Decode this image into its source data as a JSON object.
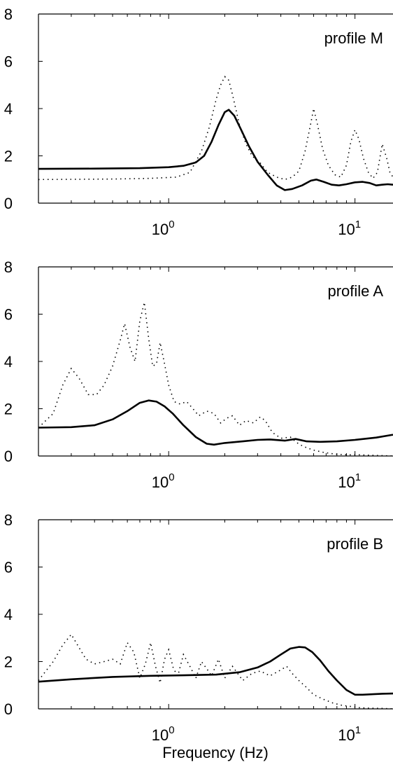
{
  "chart_data": [
    {
      "type": "line",
      "annotation": "profile M",
      "xscale": "log",
      "xlim": [
        0.2,
        16
      ],
      "ylim": [
        0,
        8
      ],
      "yticks": [
        0,
        2,
        4,
        6,
        8
      ],
      "xticks": [
        {
          "value": 1,
          "base": "10",
          "exp": "0"
        },
        {
          "value": 10,
          "base": "10",
          "exp": "1"
        }
      ],
      "series": [
        {
          "style": "solid",
          "x": [
            0.2,
            0.4,
            0.7,
            1.0,
            1.2,
            1.4,
            1.55,
            1.7,
            1.85,
            2.0,
            2.1,
            2.25,
            2.45,
            2.7,
            3.0,
            3.4,
            3.8,
            4.2,
            4.6,
            5.2,
            5.8,
            6.2,
            6.8,
            7.5,
            8.2,
            9.0,
            10.0,
            11.0,
            12.0,
            13.0,
            14.0,
            15.0,
            16.0
          ],
          "y": [
            1.45,
            1.46,
            1.48,
            1.52,
            1.58,
            1.72,
            2.0,
            2.6,
            3.3,
            3.85,
            3.95,
            3.7,
            3.1,
            2.4,
            1.75,
            1.2,
            0.75,
            0.55,
            0.6,
            0.75,
            0.95,
            1.0,
            0.9,
            0.78,
            0.75,
            0.8,
            0.88,
            0.9,
            0.85,
            0.75,
            0.78,
            0.8,
            0.78
          ]
        },
        {
          "style": "dotted",
          "x": [
            0.2,
            0.5,
            0.8,
            1.1,
            1.3,
            1.5,
            1.65,
            1.8,
            1.9,
            2.0,
            2.1,
            2.2,
            2.4,
            2.6,
            2.8,
            3.1,
            3.4,
            3.8,
            4.2,
            4.6,
            5.0,
            5.4,
            5.8,
            6.0,
            6.3,
            6.7,
            7.2,
            7.8,
            8.4,
            9.0,
            9.5,
            10.0,
            10.5,
            11.1,
            11.8,
            12.5,
            13.2,
            14.0,
            14.8,
            15.4,
            16.0
          ],
          "y": [
            1.0,
            1.02,
            1.05,
            1.1,
            1.3,
            2.2,
            3.2,
            4.4,
            5.0,
            5.35,
            5.2,
            4.6,
            3.3,
            2.5,
            2.0,
            1.7,
            1.3,
            1.1,
            1.0,
            1.1,
            1.35,
            2.2,
            3.4,
            4.0,
            3.3,
            2.3,
            1.6,
            1.2,
            1.1,
            1.6,
            2.6,
            3.1,
            2.7,
            1.9,
            1.3,
            1.05,
            1.3,
            2.5,
            1.9,
            1.3,
            1.1
          ]
        }
      ]
    },
    {
      "type": "line",
      "annotation": "profile A",
      "xscale": "log",
      "xlim": [
        0.2,
        16
      ],
      "ylim": [
        0,
        8
      ],
      "yticks": [
        0,
        2,
        4,
        6,
        8
      ],
      "xticks": [
        {
          "value": 1,
          "base": "10",
          "exp": "0"
        },
        {
          "value": 10,
          "base": "10",
          "exp": "1"
        }
      ],
      "series": [
        {
          "style": "solid",
          "x": [
            0.2,
            0.3,
            0.4,
            0.5,
            0.6,
            0.7,
            0.78,
            0.86,
            0.95,
            1.05,
            1.2,
            1.4,
            1.6,
            1.75,
            2.0,
            2.5,
            3.0,
            3.5,
            4.2,
            4.8,
            5.5,
            6.5,
            8.0,
            10.0,
            13.0,
            16.0
          ],
          "y": [
            1.2,
            1.22,
            1.3,
            1.55,
            1.9,
            2.25,
            2.35,
            2.3,
            2.1,
            1.8,
            1.3,
            0.8,
            0.52,
            0.48,
            0.55,
            0.62,
            0.68,
            0.7,
            0.65,
            0.72,
            0.62,
            0.6,
            0.62,
            0.68,
            0.78,
            0.9
          ]
        },
        {
          "style": "dotted",
          "x": [
            0.2,
            0.24,
            0.27,
            0.3,
            0.33,
            0.37,
            0.41,
            0.45,
            0.5,
            0.55,
            0.58,
            0.62,
            0.66,
            0.7,
            0.74,
            0.78,
            0.82,
            0.86,
            0.9,
            0.95,
            1.0,
            1.07,
            1.15,
            1.25,
            1.35,
            1.45,
            1.6,
            1.75,
            1.9,
            2.05,
            2.2,
            2.4,
            2.6,
            2.85,
            3.1,
            3.3,
            3.6,
            4.0,
            4.5,
            5.0,
            5.5,
            6.0,
            6.8,
            7.8,
            9.0,
            10.5,
            12.5,
            16.0
          ],
          "y": [
            1.2,
            1.8,
            3.0,
            3.7,
            3.3,
            2.6,
            2.6,
            3.0,
            3.8,
            4.9,
            5.6,
            4.6,
            4.0,
            5.7,
            6.5,
            5.0,
            3.8,
            3.9,
            4.8,
            3.9,
            3.0,
            2.3,
            2.2,
            2.3,
            2.0,
            1.7,
            1.9,
            1.8,
            1.4,
            1.6,
            1.7,
            1.3,
            1.5,
            1.4,
            1.65,
            1.5,
            1.0,
            0.75,
            0.8,
            0.5,
            0.35,
            0.25,
            0.15,
            0.08,
            0.05,
            0.05,
            0.03,
            0.0
          ]
        }
      ]
    },
    {
      "type": "line",
      "annotation": "profile B",
      "xscale": "log",
      "xlim": [
        0.2,
        16
      ],
      "ylim": [
        0,
        8
      ],
      "yticks": [
        0,
        2,
        4,
        6,
        8
      ],
      "xticks": [
        {
          "value": 1,
          "base": "10",
          "exp": "0"
        },
        {
          "value": 10,
          "base": "10",
          "exp": "1"
        }
      ],
      "xlabel": "Frequency (Hz)",
      "series": [
        {
          "style": "solid",
          "x": [
            0.2,
            0.3,
            0.5,
            0.8,
            1.2,
            1.8,
            2.4,
            3.0,
            3.5,
            4.0,
            4.5,
            5.0,
            5.4,
            5.9,
            6.5,
            7.2,
            8.0,
            9.0,
            10.0,
            11.0,
            12.5,
            14.0,
            16.0
          ],
          "y": [
            1.15,
            1.25,
            1.35,
            1.4,
            1.42,
            1.45,
            1.55,
            1.75,
            2.0,
            2.3,
            2.55,
            2.62,
            2.6,
            2.4,
            2.05,
            1.6,
            1.2,
            0.8,
            0.6,
            0.6,
            0.62,
            0.64,
            0.65
          ]
        },
        {
          "style": "dotted",
          "x": [
            0.2,
            0.24,
            0.27,
            0.3,
            0.33,
            0.36,
            0.4,
            0.45,
            0.5,
            0.55,
            0.6,
            0.65,
            0.7,
            0.75,
            0.8,
            0.85,
            0.9,
            0.95,
            1.0,
            1.06,
            1.12,
            1.2,
            1.3,
            1.4,
            1.5,
            1.6,
            1.7,
            1.85,
            2.0,
            2.2,
            2.5,
            2.8,
            3.1,
            3.5,
            3.9,
            4.3,
            4.6,
            5.0,
            5.5,
            6.0,
            6.8,
            7.6,
            8.5,
            9.5,
            10.5,
            12.0,
            14.0,
            16.0
          ],
          "y": [
            1.2,
            2.0,
            2.7,
            3.15,
            2.6,
            2.1,
            1.9,
            2.0,
            2.1,
            1.9,
            2.8,
            2.4,
            1.3,
            1.9,
            2.8,
            1.8,
            1.1,
            2.1,
            2.5,
            1.7,
            1.4,
            2.3,
            1.8,
            1.3,
            2.0,
            1.7,
            1.4,
            2.1,
            1.3,
            1.8,
            1.2,
            1.5,
            1.6,
            1.4,
            1.6,
            1.8,
            1.5,
            1.2,
            0.9,
            0.6,
            0.4,
            0.25,
            0.15,
            0.1,
            0.05,
            0.03,
            0.02,
            0.0
          ]
        }
      ]
    }
  ]
}
